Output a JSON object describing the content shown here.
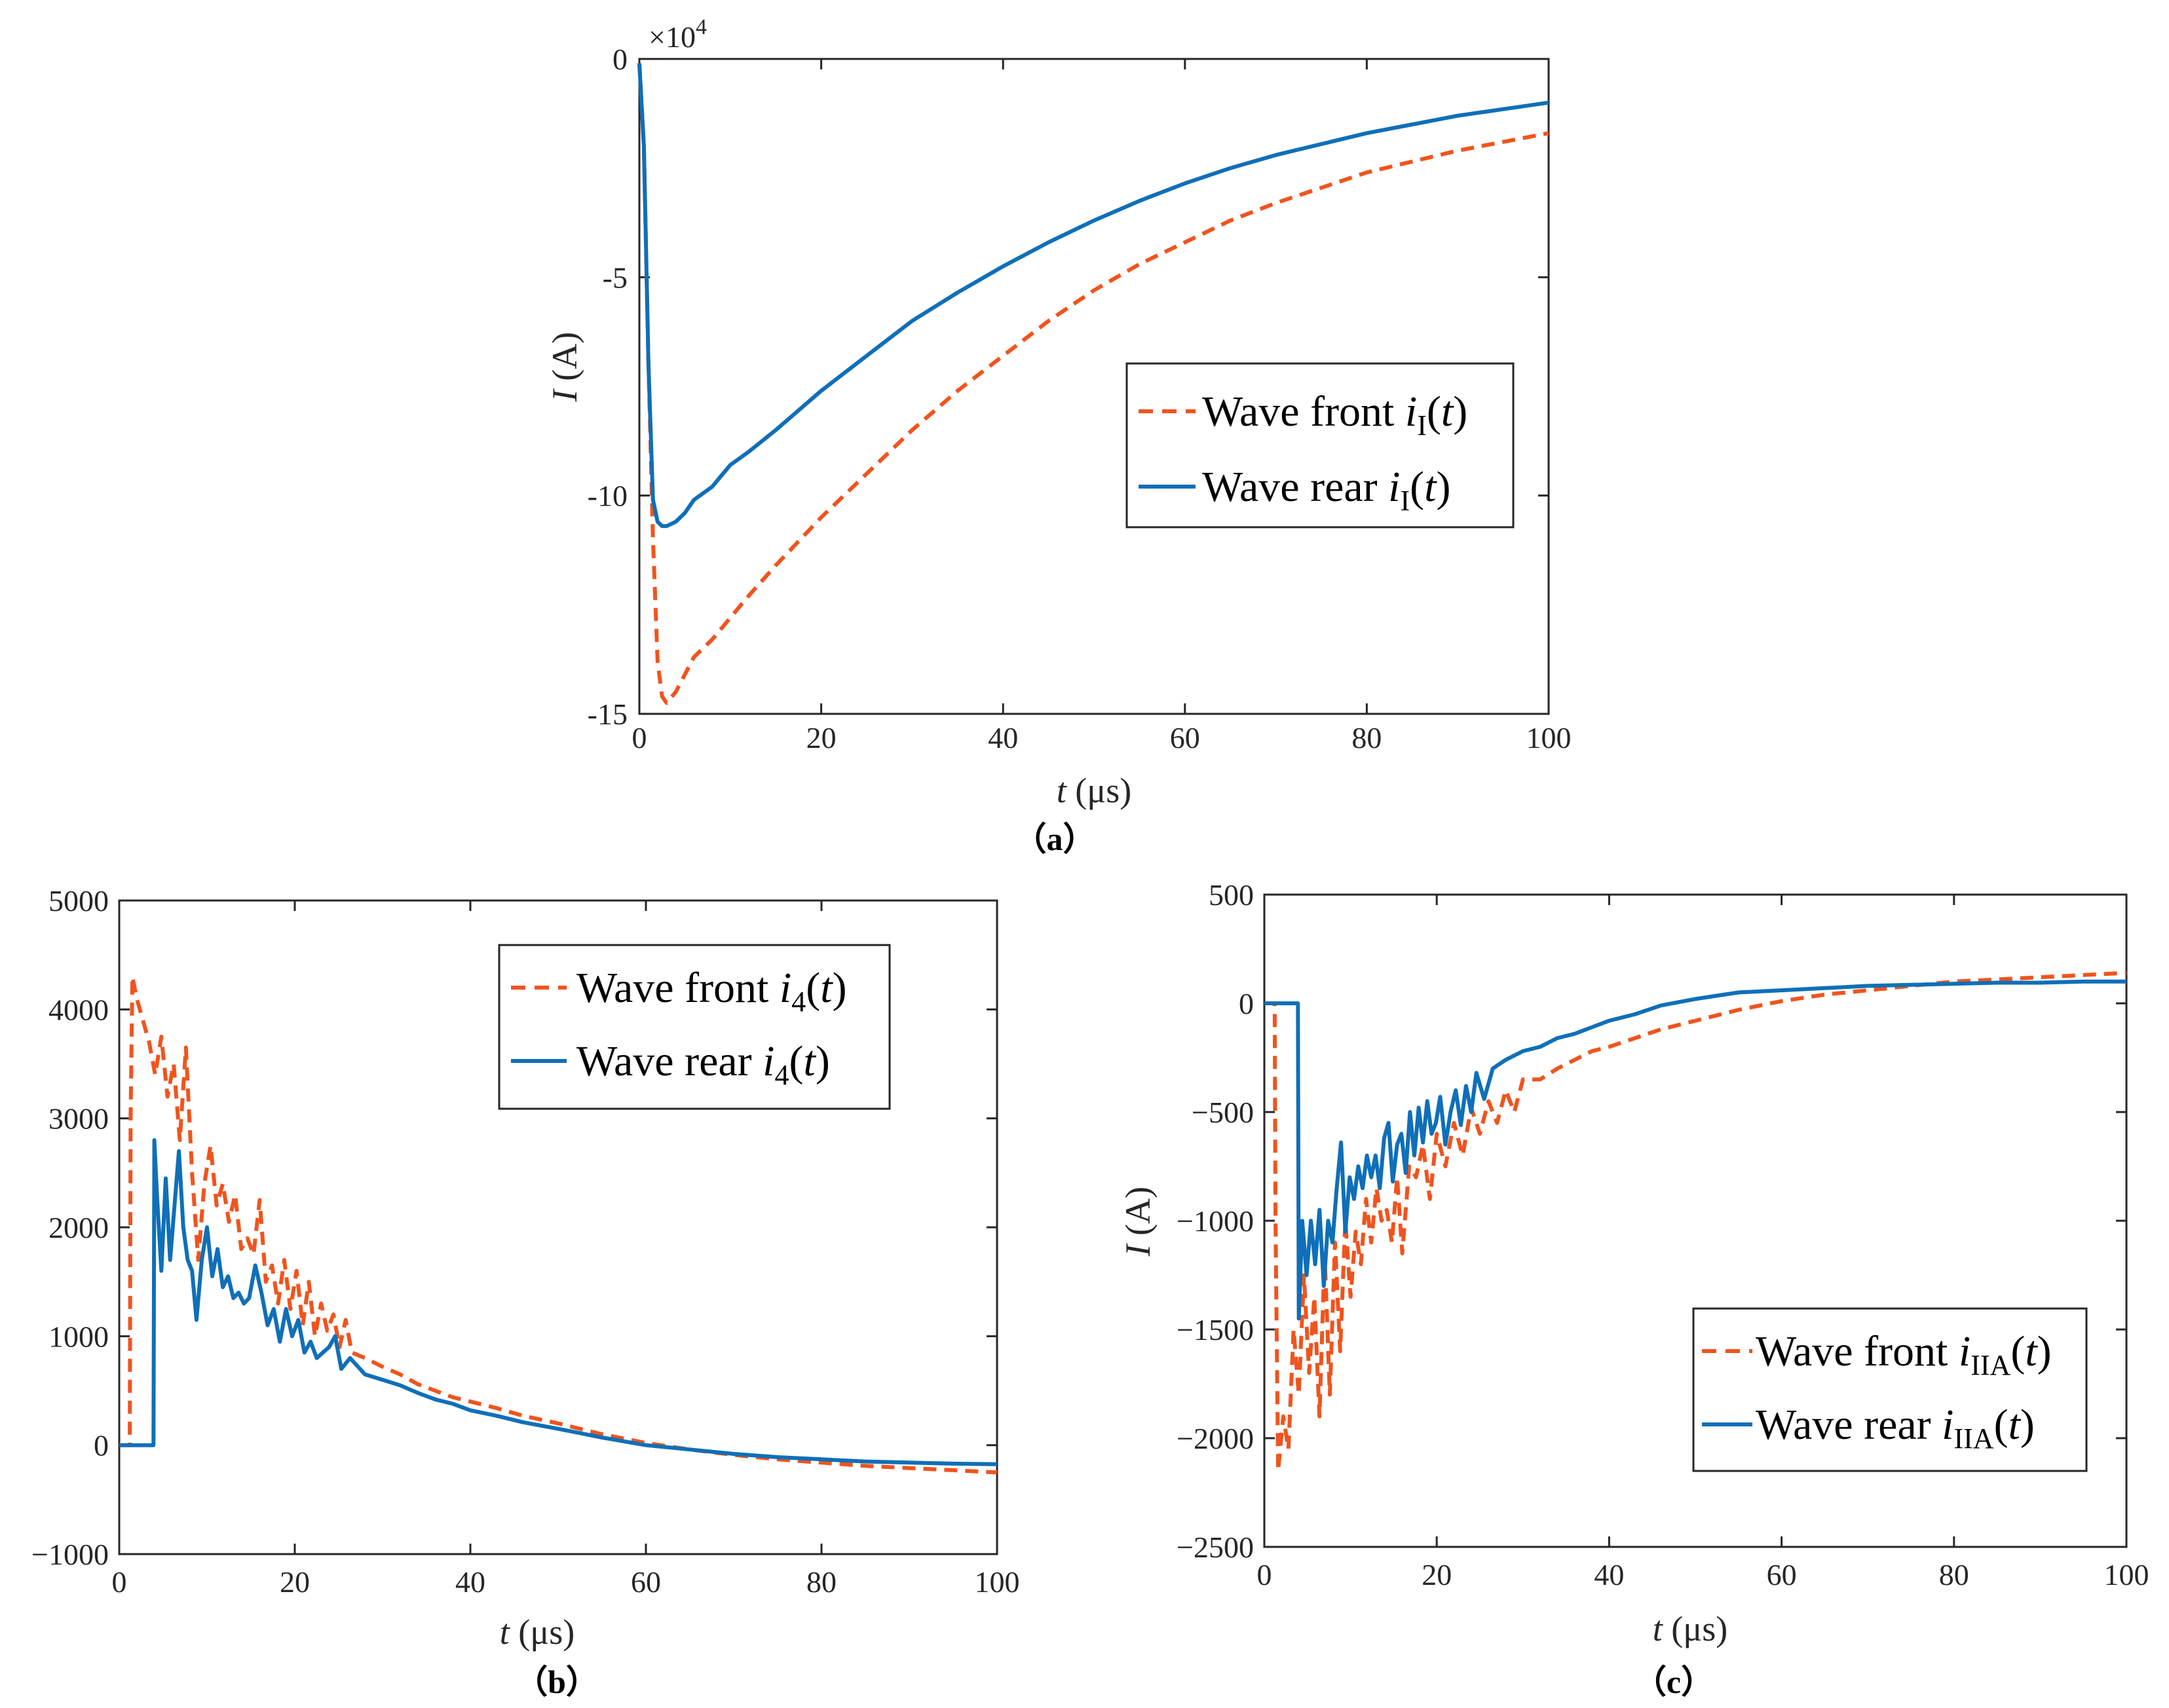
{
  "chart_data": [
    {
      "panel": "a",
      "type": "line",
      "caption": "（a）",
      "multiplier_label": "×10",
      "multiplier_exponent": "4",
      "xlabel_var": "t",
      "xlabel_unit": " (μs)",
      "ylabel_var": "I",
      "ylabel_unit": " (A)",
      "xlim": [
        0,
        100
      ],
      "ylim": [
        -15,
        0
      ],
      "xticks": [
        0,
        20,
        40,
        60,
        80,
        100
      ],
      "xtick_labels": [
        "0",
        "20",
        "40",
        "60",
        "80",
        "100"
      ],
      "yticks": [
        0,
        -5,
        -10,
        -15
      ],
      "ytick_labels": [
        "0",
        "-5",
        "-10",
        "-15"
      ],
      "legend_position": "center-right",
      "series": [
        {
          "name": "Wave front iI(t)",
          "legend": {
            "prefix": "Wave front ",
            "var": "i",
            "sub": "I",
            "suffix_open": "(",
            "arg": "t",
            "suffix_close": ")"
          },
          "style": "dashed",
          "color": "#f0541e",
          "x": [
            0,
            0.5,
            1,
            1.5,
            2,
            2.5,
            3,
            4,
            5,
            6,
            8,
            10,
            12,
            15,
            20,
            25,
            30,
            35,
            40,
            45,
            50,
            55,
            60,
            65,
            70,
            75,
            80,
            85,
            90,
            95,
            100
          ],
          "y": [
            -0.1,
            -2,
            -7,
            -11,
            -13.8,
            -14.6,
            -14.75,
            -14.5,
            -14.1,
            -13.7,
            -13.3,
            -12.8,
            -12.3,
            -11.6,
            -10.5,
            -9.5,
            -8.5,
            -7.6,
            -6.8,
            -6.0,
            -5.3,
            -4.7,
            -4.2,
            -3.7,
            -3.3,
            -2.95,
            -2.6,
            -2.35,
            -2.1,
            -1.9,
            -1.7
          ]
        },
        {
          "name": "Wave rear iI(t)",
          "legend": {
            "prefix": "Wave rear ",
            "var": "i",
            "sub": "I",
            "suffix_open": "(",
            "arg": "t",
            "suffix_close": ")"
          },
          "style": "solid",
          "color": "#0f6fb8",
          "x": [
            0,
            0.5,
            1,
            1.5,
            2,
            2.5,
            3,
            4,
            5,
            6,
            8,
            10,
            12,
            15,
            20,
            25,
            30,
            35,
            40,
            45,
            50,
            55,
            60,
            65,
            70,
            75,
            80,
            85,
            90,
            95,
            100
          ],
          "y": [
            -0.1,
            -2,
            -7,
            -10.1,
            -10.6,
            -10.7,
            -10.7,
            -10.6,
            -10.4,
            -10.1,
            -9.8,
            -9.3,
            -9.0,
            -8.5,
            -7.6,
            -6.8,
            -6.0,
            -5.35,
            -4.75,
            -4.2,
            -3.7,
            -3.25,
            -2.85,
            -2.5,
            -2.2,
            -1.95,
            -1.7,
            -1.5,
            -1.3,
            -1.15,
            -1.0
          ]
        }
      ]
    },
    {
      "panel": "b",
      "type": "line",
      "caption": "（b）",
      "xlabel_var": "t",
      "xlabel_unit": " (μs)",
      "ylabel_var": "",
      "ylabel_unit": "",
      "xlim": [
        0,
        100
      ],
      "ylim": [
        -1000,
        5000
      ],
      "xticks": [
        0,
        20,
        40,
        60,
        80,
        100
      ],
      "xtick_labels": [
        "0",
        "20",
        "40",
        "60",
        "80",
        "100"
      ],
      "yticks": [
        5000,
        4000,
        3000,
        2000,
        1000,
        0,
        -1000
      ],
      "ytick_labels": [
        "5000",
        "4000",
        "3000",
        "2000",
        "1000",
        "0",
        "−1000"
      ],
      "legend_position": "top-right",
      "series": [
        {
          "name": "Wave front i4(t)",
          "legend": {
            "prefix": "Wave front ",
            "var": "i",
            "sub": "4",
            "suffix_open": "(",
            "arg": "t",
            "suffix_close": ")"
          },
          "style": "dashed",
          "color": "#f0541e",
          "x": [
            0,
            1.2,
            1.3,
            1.5,
            2,
            2.7,
            3.4,
            4.1,
            4.8,
            5.5,
            6.2,
            6.9,
            7.6,
            8.3,
            9,
            9.7,
            10.4,
            11.1,
            11.8,
            12.5,
            13.2,
            13.9,
            14.6,
            15.3,
            16,
            16.7,
            17.4,
            18.1,
            18.8,
            19.5,
            20.2,
            20.9,
            21.6,
            22.3,
            23,
            23.7,
            24.4,
            25.1,
            25.8,
            26.5,
            28,
            30,
            32,
            34,
            36,
            38,
            40,
            43,
            46,
            50,
            55,
            60,
            65,
            70,
            75,
            80,
            85,
            90,
            95,
            100
          ],
          "y": [
            0,
            0,
            3000,
            4300,
            4100,
            3900,
            3700,
            3400,
            3750,
            3200,
            3500,
            2800,
            3650,
            2500,
            1700,
            2400,
            2750,
            2200,
            2400,
            2050,
            2300,
            1800,
            1900,
            1750,
            2250,
            1500,
            1650,
            1300,
            1700,
            1250,
            1600,
            1100,
            1500,
            1000,
            1300,
            1050,
            1200,
            900,
            1150,
            850,
            800,
            720,
            650,
            560,
            500,
            440,
            400,
            340,
            270,
            200,
            100,
            20,
            -40,
            -90,
            -130,
            -160,
            -190,
            -210,
            -230,
            -250
          ]
        },
        {
          "name": "Wave rear i4(t)",
          "legend": {
            "prefix": "Wave rear ",
            "var": "i",
            "sub": "4",
            "suffix_open": "(",
            "arg": "t",
            "suffix_close": ")"
          },
          "style": "solid",
          "color": "#0f6fb8",
          "x": [
            0,
            3.9,
            4,
            4.3,
            4.8,
            5.3,
            5.8,
            6.3,
            6.8,
            7.3,
            7.8,
            8.3,
            8.8,
            9.4,
            10,
            10.6,
            11.2,
            11.8,
            12.4,
            13,
            13.6,
            14.2,
            14.8,
            15.5,
            16.2,
            16.9,
            17.6,
            18.3,
            19,
            19.7,
            20.4,
            21.1,
            21.8,
            22.5,
            23.2,
            23.9,
            24.6,
            25.3,
            26.3,
            28,
            30,
            32,
            34,
            36,
            38,
            40,
            43,
            46,
            50,
            55,
            60,
            65,
            70,
            75,
            80,
            85,
            90,
            95,
            100
          ],
          "y": [
            0,
            0,
            2800,
            2300,
            1600,
            2450,
            1700,
            2200,
            2700,
            2000,
            1700,
            1600,
            1150,
            1700,
            2000,
            1550,
            1800,
            1450,
            1550,
            1350,
            1400,
            1300,
            1350,
            1650,
            1400,
            1100,
            1250,
            950,
            1250,
            1000,
            1150,
            850,
            950,
            800,
            850,
            900,
            1000,
            700,
            800,
            650,
            600,
            550,
            480,
            420,
            380,
            320,
            270,
            210,
            150,
            70,
            0,
            -40,
            -80,
            -110,
            -130,
            -150,
            -160,
            -170,
            -175
          ]
        }
      ]
    },
    {
      "panel": "c",
      "type": "line",
      "caption": "（c）",
      "xlabel_var": "t",
      "xlabel_unit": " (μs)",
      "ylabel_var": "I",
      "ylabel_unit": " (A)",
      "xlim": [
        0,
        100
      ],
      "ylim": [
        -2500,
        500
      ],
      "xticks": [
        0,
        20,
        40,
        60,
        80,
        100
      ],
      "xtick_labels": [
        "0",
        "20",
        "40",
        "60",
        "80",
        "100"
      ],
      "yticks": [
        500,
        0,
        -500,
        -1000,
        -1500,
        -2000,
        -2500
      ],
      "ytick_labels": [
        "500",
        "0",
        "−500",
        "−1000",
        "−1500",
        "−2000",
        "−2500"
      ],
      "legend_position": "bottom-right",
      "series": [
        {
          "name": "Wave front iIIA(t)",
          "legend": {
            "prefix": "Wave front ",
            "var": "i",
            "sub": "IIA",
            "suffix_open": "(",
            "arg": "t",
            "suffix_close": ")"
          },
          "style": "dashed",
          "color": "#f0541e",
          "x": [
            0,
            1.2,
            1.3,
            1.6,
            2.2,
            2.8,
            3.4,
            4,
            4.6,
            5.2,
            5.8,
            6.4,
            7,
            7.6,
            8.2,
            8.8,
            9.4,
            10,
            10.6,
            11.2,
            11.8,
            12.4,
            13,
            13.6,
            14.2,
            14.8,
            15.4,
            16,
            16.8,
            17.6,
            18.4,
            19.2,
            20,
            21,
            22,
            23,
            24,
            25,
            26,
            27,
            28,
            29,
            30,
            32,
            34,
            36,
            38,
            40,
            43,
            46,
            50,
            55,
            60,
            65,
            70,
            75,
            80,
            85,
            90,
            95,
            100
          ],
          "y": [
            0,
            0,
            -1000,
            -2150,
            -1900,
            -2050,
            -1500,
            -1800,
            -1250,
            -1700,
            -1350,
            -1900,
            -1150,
            -1800,
            -1100,
            -1600,
            -1000,
            -1350,
            -1050,
            -1200,
            -900,
            -1100,
            -850,
            -1000,
            -950,
            -1100,
            -800,
            -1150,
            -750,
            -800,
            -650,
            -900,
            -600,
            -750,
            -550,
            -700,
            -480,
            -600,
            -450,
            -550,
            -400,
            -500,
            -350,
            -350,
            -300,
            -260,
            -220,
            -200,
            -160,
            -120,
            -80,
            -30,
            10,
            40,
            60,
            80,
            100,
            110,
            120,
            130,
            140
          ]
        },
        {
          "name": "Wave rear iIIA(t)",
          "legend": {
            "prefix": "Wave rear ",
            "var": "i",
            "sub": "IIA",
            "suffix_open": "(",
            "arg": "t",
            "suffix_close": ")"
          },
          "style": "solid",
          "color": "#0f6fb8",
          "x": [
            0,
            3.9,
            4,
            4.4,
            4.9,
            5.4,
            5.9,
            6.4,
            6.9,
            7.4,
            7.9,
            8.4,
            8.9,
            9.4,
            9.9,
            10.4,
            10.9,
            11.4,
            11.9,
            12.4,
            12.9,
            13.4,
            13.9,
            14.4,
            14.9,
            15.4,
            15.9,
            16.4,
            16.9,
            17.4,
            17.9,
            18.4,
            18.9,
            19.4,
            19.9,
            20.4,
            21,
            21.6,
            22.2,
            22.8,
            23.4,
            24,
            24.6,
            25.5,
            26.5,
            28,
            30,
            32,
            34,
            36,
            38,
            40,
            43,
            46,
            50,
            55,
            60,
            65,
            70,
            75,
            80,
            85,
            90,
            95,
            100
          ],
          "y": [
            0,
            0,
            -1450,
            -1000,
            -1250,
            -1000,
            -1200,
            -950,
            -1300,
            -1000,
            -1100,
            -850,
            -640,
            -1050,
            -800,
            -900,
            -750,
            -850,
            -700,
            -800,
            -700,
            -850,
            -620,
            -550,
            -820,
            -650,
            -600,
            -780,
            -500,
            -700,
            -480,
            -640,
            -450,
            -600,
            -550,
            -430,
            -650,
            -500,
            -400,
            -560,
            -380,
            -500,
            -320,
            -440,
            -300,
            -260,
            -220,
            -200,
            -160,
            -140,
            -110,
            -80,
            -50,
            -10,
            20,
            50,
            60,
            70,
            80,
            85,
            90,
            95,
            95,
            100,
            100
          ]
        }
      ]
    }
  ]
}
